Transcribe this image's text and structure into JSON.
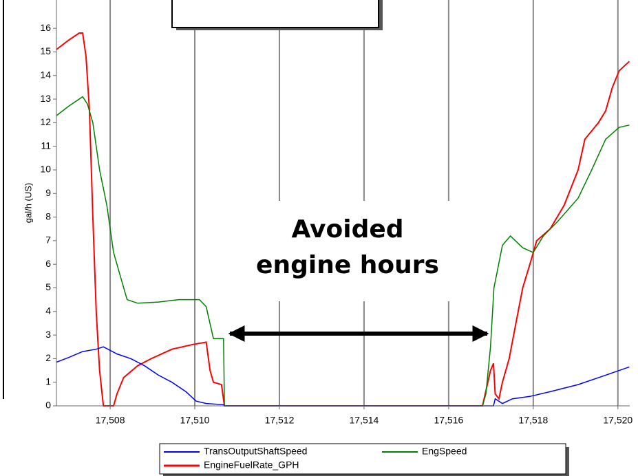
{
  "chart_data": {
    "type": "line",
    "y_label": "gal/h (US)",
    "annotation": [
      "Avoided",
      "engine hours"
    ],
    "xlim": [
      17506.73,
      17520.28
    ],
    "xticks": [
      {
        "value": 17508,
        "label": "17,508"
      },
      {
        "value": 17510,
        "label": "17,510"
      },
      {
        "value": 17512,
        "label": "17,512"
      },
      {
        "value": 17514,
        "label": "17,514"
      },
      {
        "value": 17516,
        "label": "17,516"
      },
      {
        "value": 17518,
        "label": "17,518"
      },
      {
        "value": 17520,
        "label": "17,520"
      }
    ],
    "ylim": [
      0,
      17.2
    ],
    "yticks": [
      0,
      1,
      2,
      3,
      4,
      5,
      6,
      7,
      8,
      9,
      10,
      11,
      12,
      13,
      14,
      15,
      16
    ],
    "grid": true,
    "series": [
      {
        "name": "TransOutputShaftSpeed",
        "color": "#0000ff",
        "x": [
          17506.73,
          17507.02,
          17507.35,
          17507.67,
          17507.84,
          17508.16,
          17508.49,
          17508.81,
          17509.14,
          17509.46,
          17509.79,
          17510.03,
          17510.27,
          17510.68,
          17510.7,
          17517.06,
          17517.1,
          17517.27,
          17517.51,
          17517.92,
          17518.4,
          17519.06,
          17519.71,
          17520.27
        ],
        "values": [
          1.85,
          2.05,
          2.3,
          2.4,
          2.5,
          2.2,
          2.0,
          1.7,
          1.3,
          1.0,
          0.6,
          0.2,
          0.1,
          0.05,
          0,
          0,
          0.3,
          0.1,
          0.3,
          0.4,
          0.6,
          0.9,
          1.3,
          1.65
        ]
      },
      {
        "name": "EngSpeed",
        "color": "#008000",
        "x": [
          17506.73,
          17507.02,
          17507.35,
          17507.46,
          17507.59,
          17507.75,
          17507.92,
          17508.08,
          17508.24,
          17508.4,
          17508.65,
          17509.14,
          17509.62,
          17510.11,
          17510.27,
          17510.44,
          17510.68,
          17510.7,
          17516.8,
          17516.88,
          17516.99,
          17517.07,
          17517.27,
          17517.46,
          17517.75,
          17518.0,
          17518.24,
          17518.57,
          17519.06,
          17519.38,
          17519.71,
          17520.03,
          17520.27
        ],
        "values": [
          12.3,
          12.7,
          13.1,
          12.8,
          12,
          10,
          8.5,
          6.5,
          5.5,
          4.5,
          4.35,
          4.4,
          4.5,
          4.5,
          4.2,
          2.85,
          2.85,
          0,
          0,
          0.5,
          2.5,
          5,
          6.8,
          7.2,
          6.7,
          6.5,
          7.2,
          7.8,
          8.8,
          10,
          11.3,
          11.8,
          11.9
        ]
      },
      {
        "name": "EngineFuelRate_GPH",
        "color": "#ff0000",
        "x": [
          17506.73,
          17507.02,
          17507.27,
          17507.35,
          17507.43,
          17507.51,
          17507.59,
          17507.67,
          17507.75,
          17507.84,
          17508.08,
          17508.16,
          17508.32,
          17508.65,
          17508.97,
          17509.46,
          17509.95,
          17510.27,
          17510.36,
          17510.44,
          17510.63,
          17510.7,
          17516.8,
          17516.99,
          17517.06,
          17517.1,
          17517.19,
          17517.27,
          17517.43,
          17517.59,
          17517.75,
          17517.92,
          17518.08,
          17518.4,
          17518.73,
          17519.06,
          17519.22,
          17519.54,
          17519.71,
          17519.87,
          17520.03,
          17520.27
        ],
        "values": [
          15.1,
          15.5,
          15.8,
          15.8,
          14.8,
          12.5,
          8,
          4,
          1.5,
          0,
          0,
          0.5,
          1.2,
          1.7,
          2.0,
          2.4,
          2.6,
          2.7,
          1.5,
          1.0,
          0.9,
          0,
          0,
          1.5,
          1.8,
          0.5,
          0.3,
          1.0,
          2.0,
          3.5,
          5,
          6,
          7,
          7.5,
          8.5,
          10,
          11.3,
          12,
          12.5,
          13.5,
          14.2,
          14.6
        ]
      }
    ]
  }
}
